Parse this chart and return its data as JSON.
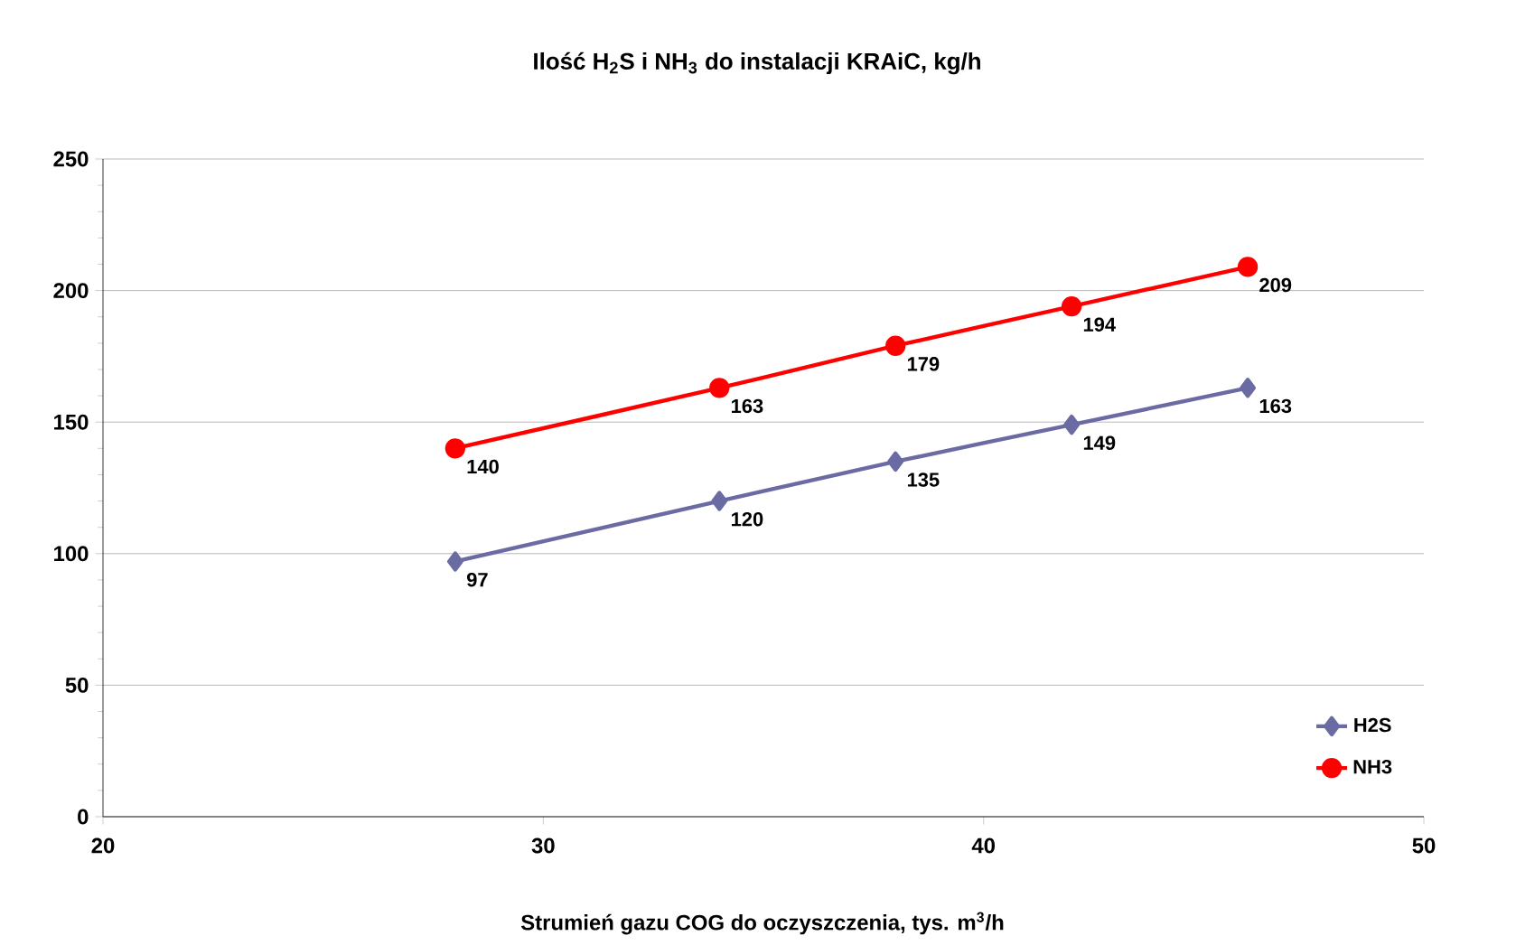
{
  "chart_data": {
    "type": "line",
    "title": "Ilość H$_{2}$S i NH$_{3}$ do instalacji KRAiC, kg/h",
    "xlabel": "Strumień gazu COG do oczyszczenia, tys. m$^{3}$/h",
    "x": [
      28,
      34,
      38,
      42,
      46
    ],
    "series": [
      {
        "name": "H2S",
        "color": "#6b6ba3",
        "marker": "diamond",
        "values": [
          97,
          120,
          135,
          149,
          163
        ]
      },
      {
        "name": "NH3",
        "color": "#ff0000",
        "marker": "circle",
        "values": [
          140,
          163,
          179,
          194,
          209
        ]
      }
    ],
    "xlim": [
      20,
      50
    ],
    "xticks": [
      20,
      30,
      40,
      50
    ],
    "ylim": [
      0,
      250
    ],
    "yticks": [
      0,
      50,
      100,
      150,
      200,
      250
    ],
    "grid": "y",
    "legend": "bottom right",
    "data_labels": true,
    "line_style": "solid"
  }
}
